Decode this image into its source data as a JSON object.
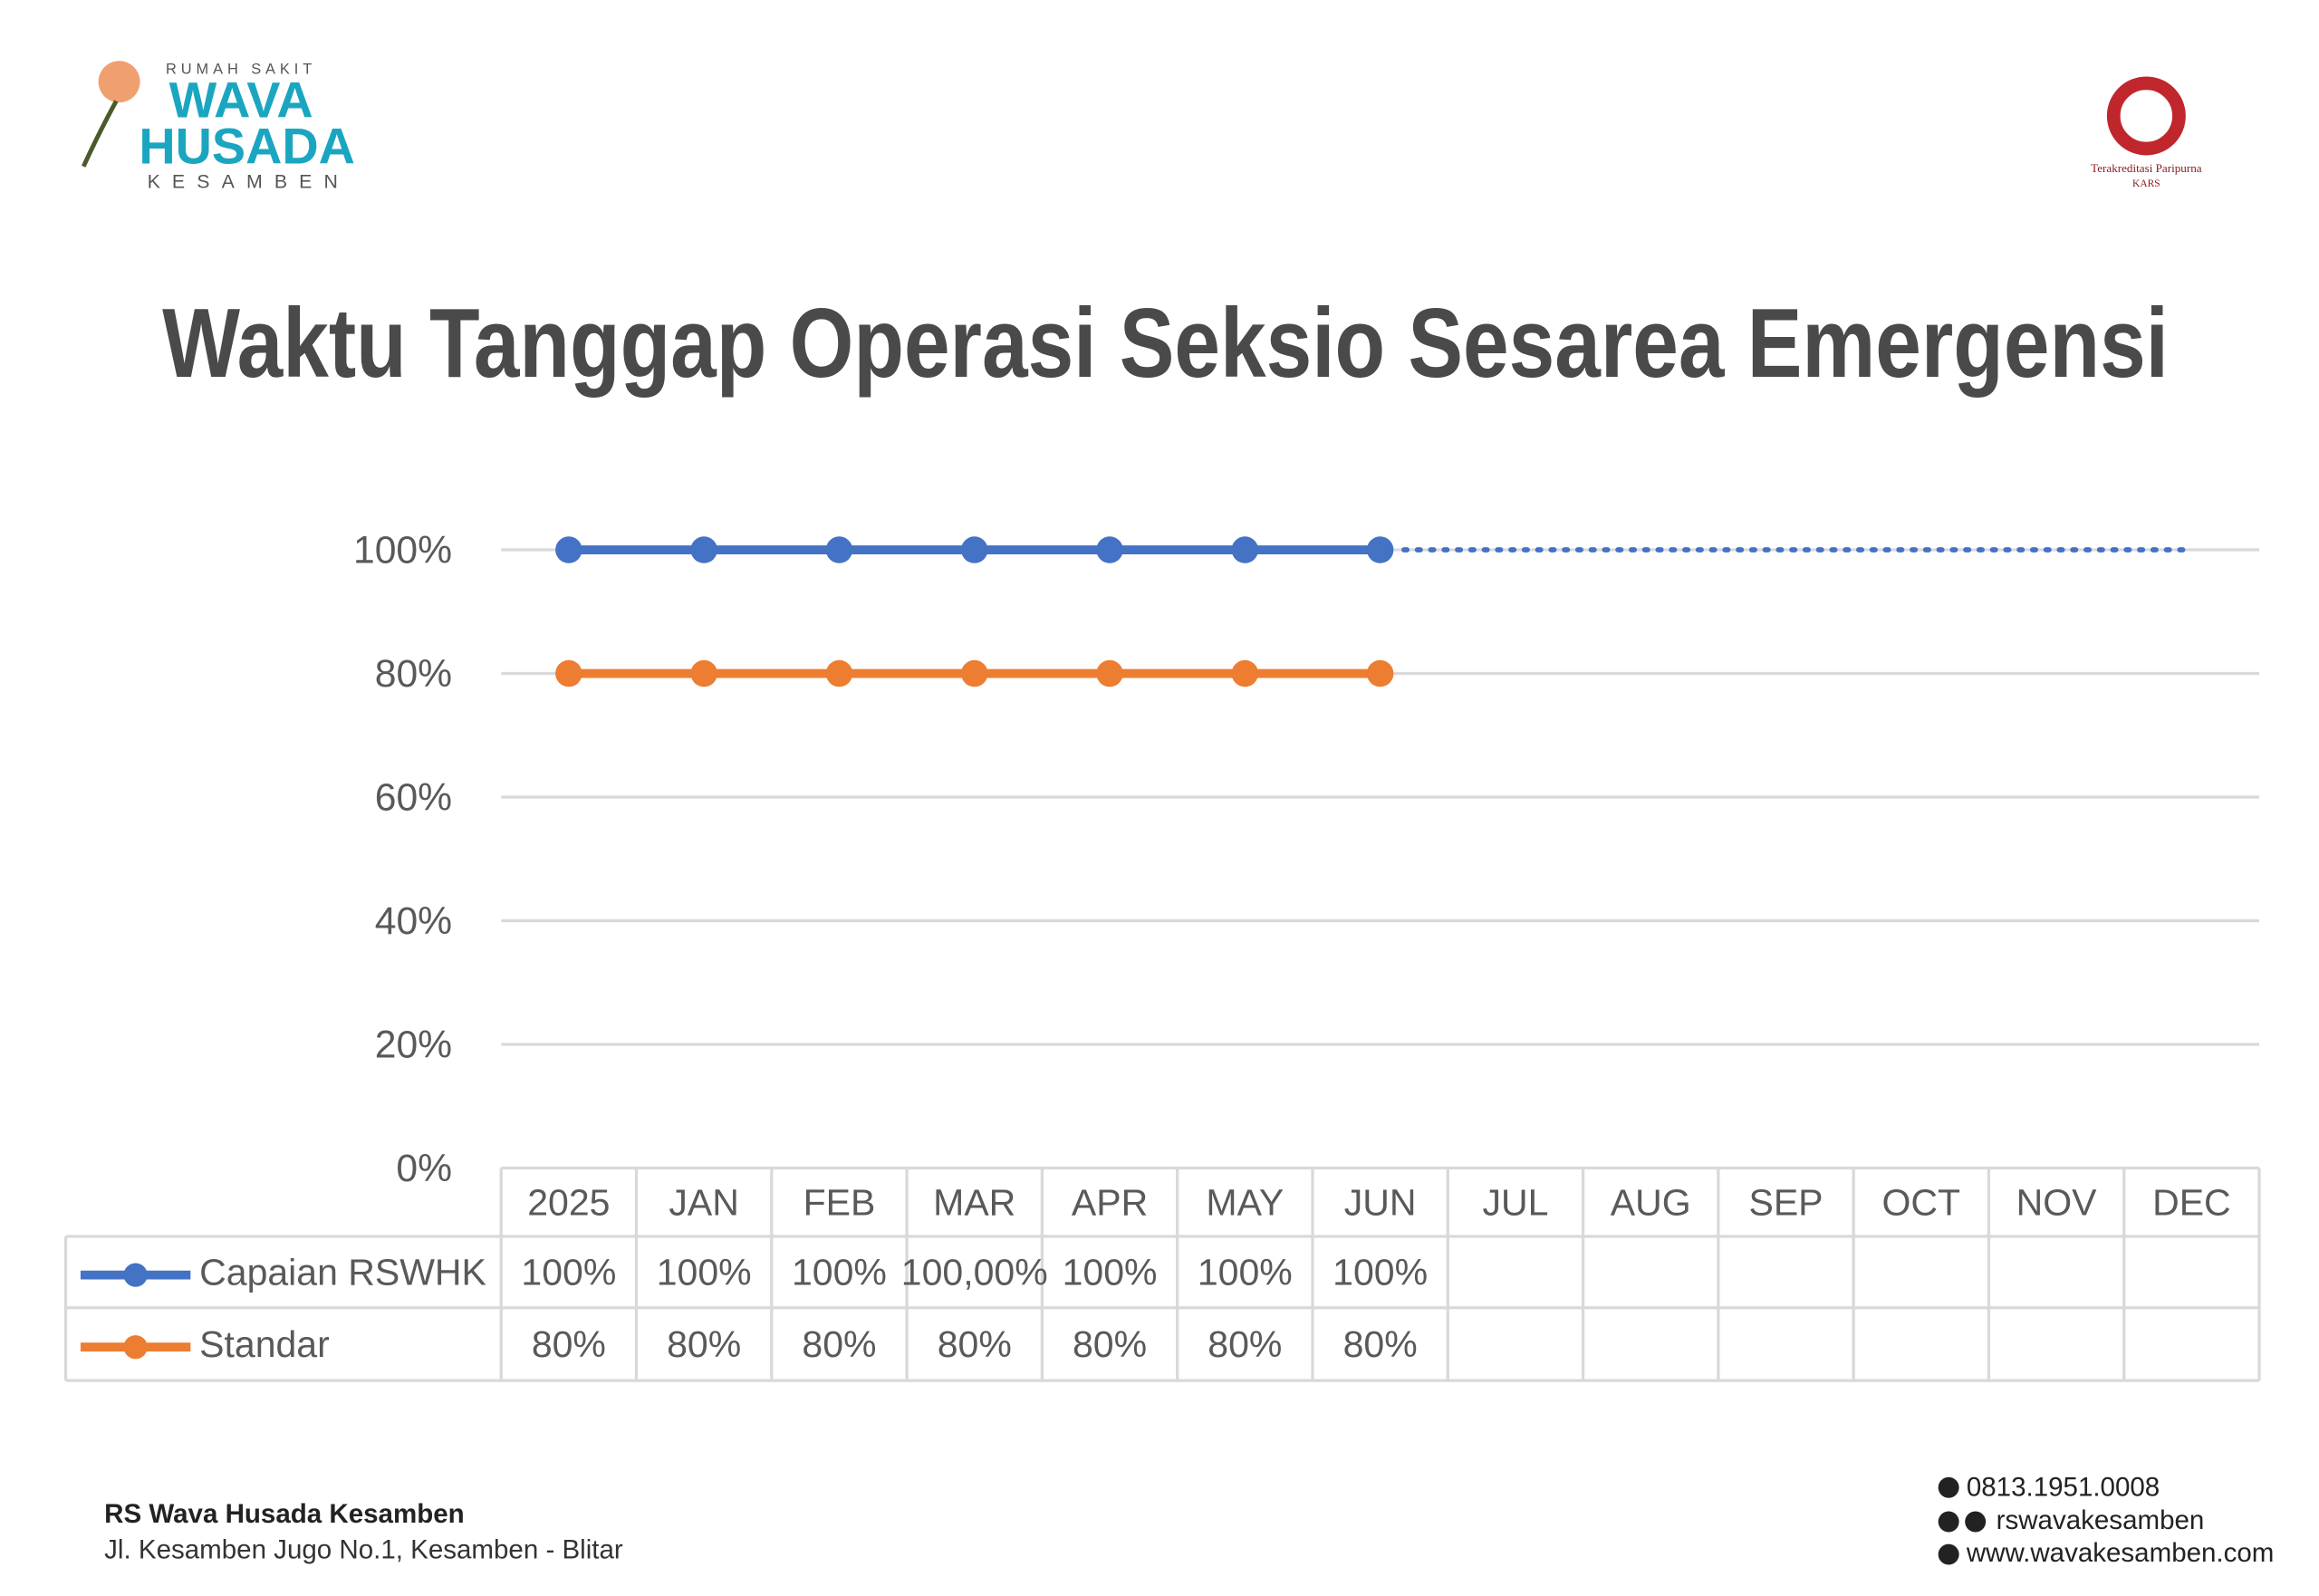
{
  "header": {
    "logo": {
      "top": "RUMAH SAKIT",
      "line1": "WAVA",
      "line2": "HUSADA",
      "bottom": "KESAMBEN"
    },
    "accreditation": {
      "line1": "Terakreditasi Paripurna",
      "line2": "KARS"
    }
  },
  "chart_data": {
    "type": "line",
    "title": "Waktu Tanggap Operasi Seksio Sesarea Emergensi",
    "categories": [
      "2025",
      "JAN",
      "FEB",
      "MAR",
      "APR",
      "MAY",
      "JUN",
      "JUL",
      "AUG",
      "SEP",
      "OCT",
      "NOV",
      "DEC"
    ],
    "series": [
      {
        "name": "Capaian RSWHK",
        "color": "#4472c4",
        "values": [
          100,
          100,
          100,
          100,
          100,
          100,
          100,
          null,
          null,
          null,
          null,
          null,
          null
        ],
        "value_labels": [
          "100%",
          "100%",
          "100%",
          "100,00%",
          "100%",
          "100%",
          "100%",
          null,
          null,
          null,
          null,
          null,
          null
        ]
      },
      {
        "name": "Standar",
        "color": "#ed7d31",
        "values": [
          80,
          80,
          80,
          80,
          80,
          80,
          80,
          null,
          null,
          null,
          null,
          null,
          null
        ],
        "value_labels": [
          "80%",
          "80%",
          "80%",
          "80%",
          "80%",
          "80%",
          "80%",
          null,
          null,
          null,
          null,
          null,
          null
        ]
      }
    ],
    "ylim": [
      0,
      100
    ],
    "yticks": [
      {
        "value": 0,
        "label": "0%"
      },
      {
        "value": 20,
        "label": "20%"
      },
      {
        "value": 40,
        "label": "40%"
      },
      {
        "value": 60,
        "label": "60%"
      },
      {
        "value": 80,
        "label": "80%"
      },
      {
        "value": 100,
        "label": "100%"
      }
    ],
    "grid": true,
    "data_table": true
  },
  "footer": {
    "name": "RS Wava Husada Kesamben",
    "address": "Jl. Kesamben Jugo No.1, Kesamben - Blitar",
    "phone": "0813.1951.0008",
    "social": "rswavakesamben",
    "website": "www.wavakesamben.com"
  }
}
